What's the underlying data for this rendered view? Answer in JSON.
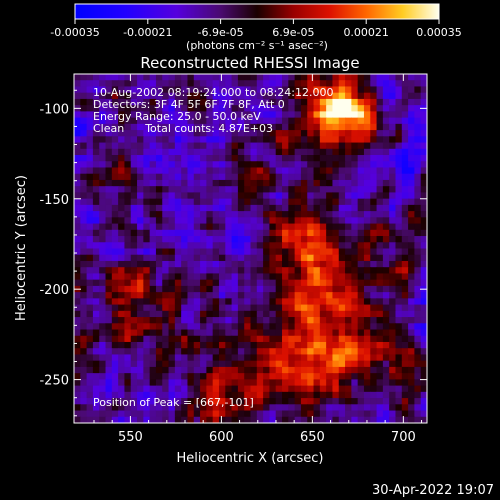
{
  "chart_data": {
    "type": "heatmap",
    "title": "Reconstructed RHESSI Image",
    "xlabel": "Heliocentric X (arcsec)",
    "ylabel": "Heliocentric Y (arcsec)",
    "xlim": [
      519,
      713
    ],
    "ylim": [
      -274,
      -81
    ],
    "xticks": [
      550,
      600,
      650,
      700
    ],
    "yticks": [
      -100,
      -150,
      -200,
      -250
    ],
    "colorbar": {
      "label": "(photons cm⁻² s⁻¹ asec⁻²)",
      "range": [
        -0.00035,
        0.00035
      ],
      "ticks": [
        "-0.00035",
        "-0.00021",
        "-6.9e-05",
        "6.9e-05",
        "0.00021",
        "0.00035"
      ]
    },
    "annotations": [
      "10-Aug-2002 08:19:24.000 to 08:24:12.000",
      "Detectors: 3F 4F 5F 6F 7F 8F, Att 0",
      "Energy Range: 25.0 - 50.0 keV",
      "Clean      Total counts: 4.87E+03"
    ],
    "peak_label": "Position of Peak = [667,-101]",
    "peak": [
      667,
      -101
    ],
    "timestamp": "30-Apr-2022 19:07",
    "colors": {
      "background": "#000000",
      "text": "#ffffff"
    },
    "blobs": [
      {
        "x": 668,
        "y": -100,
        "amp": 3.6,
        "s": 9
      },
      {
        "x": 660,
        "y": -105,
        "amp": 2.0,
        "s": 15
      },
      {
        "x": 645,
        "y": -170,
        "amp": 1.6,
        "s": 16
      },
      {
        "x": 655,
        "y": -190,
        "amp": 1.9,
        "s": 15
      },
      {
        "x": 662,
        "y": -205,
        "amp": 1.5,
        "s": 14
      },
      {
        "x": 640,
        "y": -235,
        "amp": 1.7,
        "s": 16
      },
      {
        "x": 665,
        "y": -240,
        "amp": 1.8,
        "s": 14
      },
      {
        "x": 620,
        "y": -255,
        "amp": 1.4,
        "s": 13
      },
      {
        "x": 600,
        "y": -265,
        "amp": 1.1,
        "s": 12
      },
      {
        "x": 690,
        "y": -240,
        "amp": 1.0,
        "s": 12
      },
      {
        "x": 560,
        "y": -220,
        "amp": 1.2,
        "s": 11
      },
      {
        "x": 570,
        "y": -195,
        "amp": 1.0,
        "s": 10
      },
      {
        "x": 545,
        "y": -205,
        "amp": 1.1,
        "s": 10
      },
      {
        "x": 605,
        "y": -230,
        "amp": 1.0,
        "s": 10
      },
      {
        "x": 600,
        "y": -265,
        "amp": 0.9,
        "s": 10
      },
      {
        "x": 615,
        "y": -140,
        "amp": 0.8,
        "s": 10
      },
      {
        "x": 700,
        "y": -190,
        "amp": 0.9,
        "s": 12
      },
      {
        "x": 545,
        "y": -150,
        "amp": 0.7,
        "s": 10
      },
      {
        "x": 640,
        "y": -130,
        "amp": 0.7,
        "s": 10
      },
      {
        "x": 590,
        "y": -170,
        "amp": -0.6,
        "s": 14
      },
      {
        "x": 580,
        "y": -120,
        "amp": -0.5,
        "s": 14
      },
      {
        "x": 560,
        "y": -255,
        "amp": -0.5,
        "s": 14
      },
      {
        "x": 700,
        "y": -130,
        "amp": -0.4,
        "s": 12
      }
    ]
  }
}
